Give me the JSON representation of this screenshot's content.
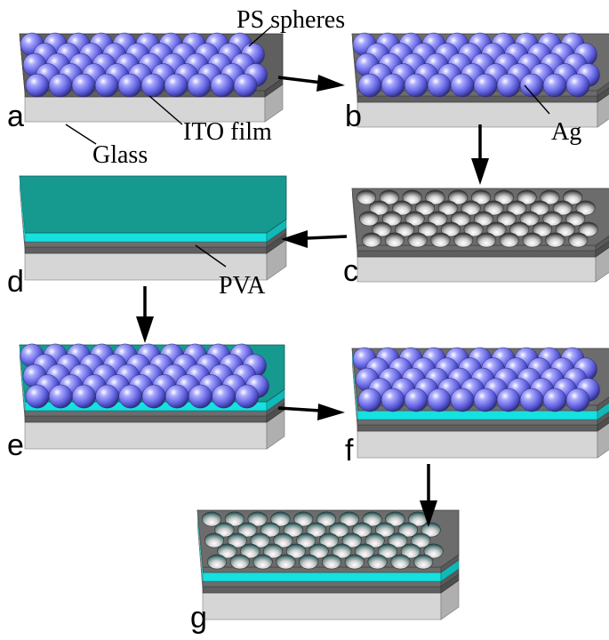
{
  "figure": {
    "labels": {
      "ps_spheres": "PS spheres",
      "ito_film": "ITO film",
      "glass": "Glass",
      "ag": "Ag",
      "pva": "PVA"
    },
    "steps": [
      {
        "letter": "a",
        "layers": [
          "glass",
          "ito"
        ],
        "top": "spheres"
      },
      {
        "letter": "b",
        "layers": [
          "glass",
          "ito",
          "ag"
        ],
        "top": "spheres"
      },
      {
        "letter": "c",
        "layers": [
          "glass",
          "ito",
          "ag"
        ],
        "top": "holes"
      },
      {
        "letter": "d",
        "layers": [
          "glass",
          "ito",
          "ag",
          "pva"
        ],
        "top": "flat"
      },
      {
        "letter": "e",
        "layers": [
          "glass",
          "ito",
          "ag",
          "pva"
        ],
        "top": "spheres"
      },
      {
        "letter": "f",
        "layers": [
          "glass",
          "ito",
          "ag",
          "pva",
          "ag"
        ],
        "top": "spheres"
      },
      {
        "letter": "g",
        "layers": [
          "glass",
          "ito",
          "ag",
          "pva",
          "ag"
        ],
        "top": "holes"
      }
    ],
    "colors": {
      "glass": "#d6d6d6",
      "ito": "#5f5f5f",
      "ag": "#6c6c6c",
      "pva": "#16e0e0",
      "pva_top": "#169a90",
      "sphere": "#6a6af0",
      "hole": "#c8c8c8"
    }
  }
}
